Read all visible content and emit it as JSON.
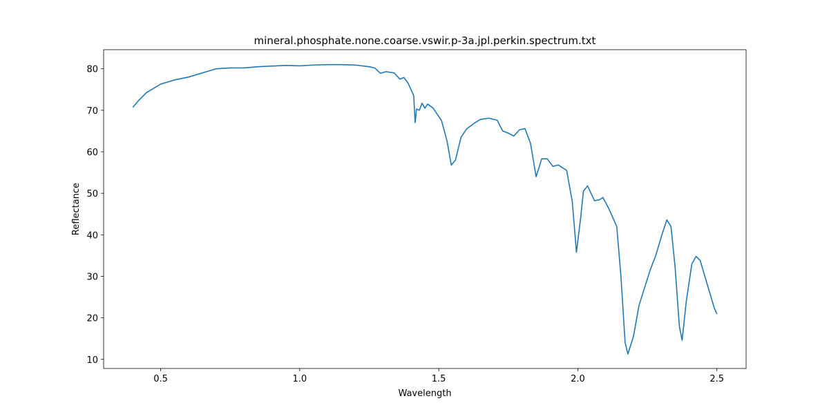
{
  "chart_data": {
    "type": "line",
    "title": "mineral.phosphate.none.coarse.vswir.p-3a.jpl.perkin.spectrum.txt",
    "xlabel": "Wavelength",
    "ylabel": "Reflectance",
    "x": [
      0.4,
      0.42,
      0.45,
      0.5,
      0.55,
      0.6,
      0.65,
      0.7,
      0.75,
      0.8,
      0.85,
      0.95,
      1.0,
      1.05,
      1.1,
      1.15,
      1.2,
      1.25,
      1.27,
      1.29,
      1.31,
      1.34,
      1.36,
      1.375,
      1.39,
      1.4,
      1.41,
      1.415,
      1.42,
      1.43,
      1.44,
      1.45,
      1.46,
      1.48,
      1.51,
      1.53,
      1.545,
      1.56,
      1.58,
      1.6,
      1.63,
      1.65,
      1.68,
      1.71,
      1.73,
      1.75,
      1.77,
      1.79,
      1.81,
      1.83,
      1.85,
      1.87,
      1.89,
      1.91,
      1.93,
      1.96,
      1.98,
      1.995,
      2.01,
      2.02,
      2.035,
      2.06,
      2.08,
      2.09,
      2.11,
      2.14,
      2.155,
      2.17,
      2.18,
      2.2,
      2.22,
      2.26,
      2.28,
      2.3,
      2.32,
      2.335,
      2.35,
      2.365,
      2.375,
      2.39,
      2.41,
      2.425,
      2.44,
      2.47,
      2.49,
      2.5
    ],
    "series": [
      {
        "name": "Reflectance",
        "color": "#1f77b4",
        "values": [
          70.7,
          72.3,
          74.3,
          76.3,
          77.3,
          78.0,
          79.0,
          80.0,
          80.2,
          80.2,
          80.5,
          80.8,
          80.7,
          80.9,
          81.0,
          81.0,
          80.9,
          80.5,
          80.2,
          78.9,
          79.3,
          79.0,
          77.5,
          77.9,
          76.5,
          75.0,
          73.5,
          67.0,
          70.3,
          70.0,
          71.7,
          70.5,
          71.5,
          70.5,
          67.5,
          62.5,
          56.8,
          58.0,
          63.5,
          65.5,
          67.0,
          67.8,
          68.1,
          67.6,
          65.0,
          64.5,
          63.8,
          65.3,
          65.6,
          62.0,
          54.0,
          58.3,
          58.3,
          56.5,
          56.8,
          55.5,
          48.0,
          35.8,
          44.0,
          50.5,
          51.8,
          48.2,
          48.5,
          49.0,
          46.5,
          42.0,
          30.0,
          14.0,
          11.3,
          15.5,
          23.0,
          31.5,
          35.0,
          39.5,
          43.6,
          42.0,
          32.0,
          18.0,
          14.6,
          24.0,
          33.0,
          34.8,
          33.8,
          27.0,
          22.5,
          20.9
        ]
      }
    ],
    "xlim": [
      0.295,
      2.605
    ],
    "ylim": [
      7.8,
      84.6
    ],
    "xticks": [
      0.5,
      {
        "value": 1.0,
        "label": "1.0"
      },
      1.5,
      {
        "value": 2.0,
        "label": "2.0"
      },
      2.5
    ],
    "yticks": [
      10,
      20,
      30,
      40,
      50,
      60,
      70,
      80
    ],
    "grid": false
  }
}
